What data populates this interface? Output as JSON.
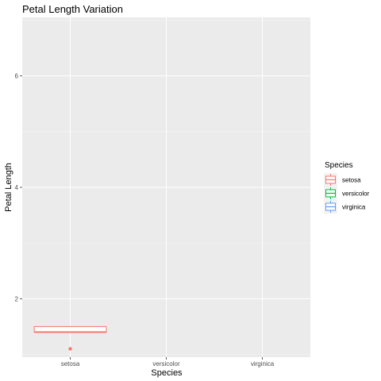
{
  "chart_data": {
    "type": "boxplot",
    "title": "Petal Length Variation",
    "xlabel": "Species",
    "ylabel": "Petal Length",
    "categories": [
      "setosa",
      "versicolor",
      "virginica"
    ],
    "ylim": [
      0.95,
      7.05
    ],
    "yticks": [
      2,
      4,
      6
    ],
    "grid": true,
    "legend": {
      "title": "Species",
      "placement": "right",
      "entries": [
        {
          "label": "setosa",
          "color": "#F8766D"
        },
        {
          "label": "versicolor",
          "color": "#00BA38"
        },
        {
          "label": "virginica",
          "color": "#619CFF"
        }
      ]
    },
    "series": [
      {
        "category": "setosa",
        "q1": 1.4,
        "median": 1.4,
        "q3": 1.5,
        "whisker_low": 1.4,
        "whisker_high": 1.5,
        "outliers": [
          1.1
        ]
      },
      {
        "category": "versicolor",
        "q1": null,
        "median": null,
        "q3": null,
        "whisker_low": null,
        "whisker_high": null,
        "outliers": []
      },
      {
        "category": "virginica",
        "q1": null,
        "median": null,
        "q3": null,
        "whisker_low": null,
        "whisker_high": null,
        "outliers": []
      }
    ],
    "colors": {
      "panel": "#EBEBEB",
      "grid_major": "#FFFFFF",
      "grid_minor": "#F5F5F5",
      "tick_text": "#4D4D4D"
    }
  }
}
